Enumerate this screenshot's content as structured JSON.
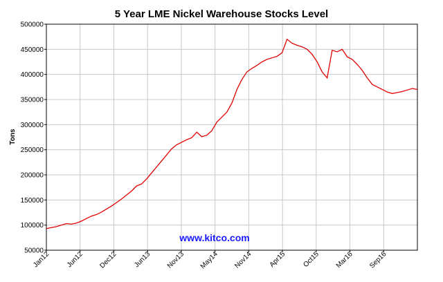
{
  "chart_data": {
    "type": "line",
    "title": "5 Year LME Nickel Warehouse Stocks Level",
    "ylabel": "Tons",
    "xlabel": "",
    "ylim": [
      50000,
      500000
    ],
    "yticks": [
      50000,
      100000,
      150000,
      200000,
      250000,
      300000,
      350000,
      400000,
      450000,
      500000
    ],
    "ytick_labels": [
      "50000",
      "100000",
      "150000",
      "200000",
      "250000",
      "300000",
      "350000",
      "400000",
      "450000",
      "500000"
    ],
    "x_ticks": [
      "Jan12",
      "Jun12",
      "Dec12",
      "Jun13",
      "Nov13",
      "May14",
      "Nov14",
      "Apr15",
      "Oct15",
      "Mar16",
      "Sep16"
    ],
    "grid": true,
    "watermark": "www.kitco.com",
    "series": [
      {
        "color": "#e00000",
        "values": [
          93000,
          95000,
          97000,
          100000,
          103000,
          102000,
          104000,
          108000,
          113000,
          118000,
          121000,
          126000,
          132000,
          138000,
          145000,
          152000,
          160000,
          168000,
          178000,
          182000,
          192000,
          204000,
          216000,
          228000,
          240000,
          252000,
          260000,
          265000,
          270000,
          274000,
          285000,
          276000,
          279000,
          288000,
          305000,
          315000,
          325000,
          343000,
          370000,
          390000,
          405000,
          412000,
          418000,
          425000,
          430000,
          433000,
          436000,
          443000,
          470000,
          462000,
          458000,
          455000,
          450000,
          440000,
          425000,
          405000,
          393000,
          448000,
          445000,
          450000,
          435000,
          430000,
          420000,
          408000,
          393000,
          380000,
          375000,
          370000,
          365000,
          362000,
          364000,
          366000,
          369000,
          372000,
          370000
        ]
      }
    ]
  }
}
